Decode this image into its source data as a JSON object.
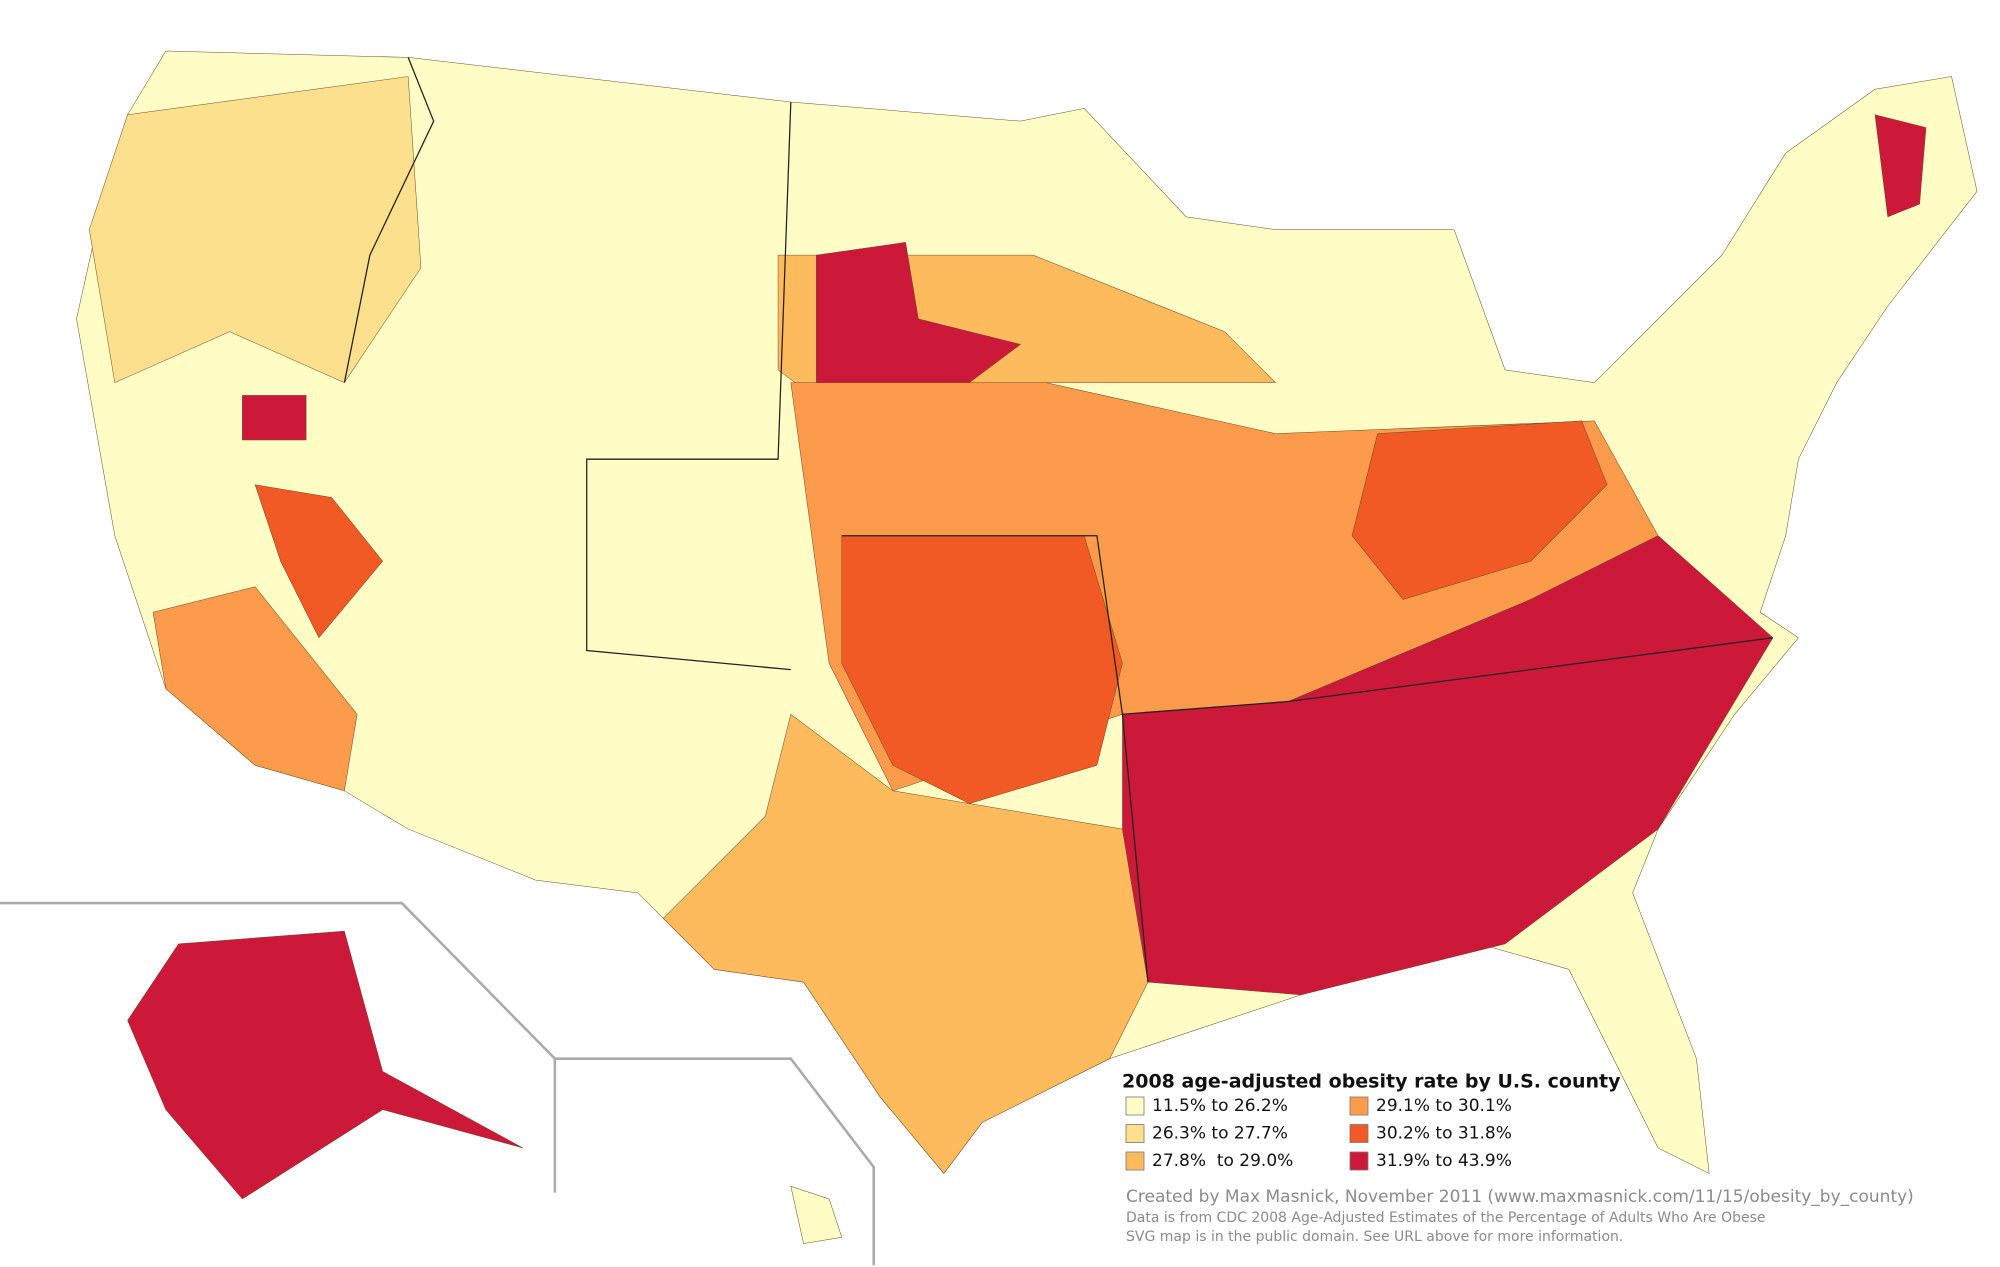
{
  "legend": {
    "title": "2008 age-adjusted obesity rate by U.S. county",
    "items": [
      {
        "label": "11.5% to 26.2%",
        "color": "#fffdc5"
      },
      {
        "label": "26.3% to 27.7%",
        "color": "#fde08e"
      },
      {
        "label": "27.8%  to 29.0%",
        "color": "#fdbb5e"
      },
      {
        "label": "29.1% to 30.1%",
        "color": "#fb9b4b"
      },
      {
        "label": "30.2% to 31.8%",
        "color": "#f15a24"
      },
      {
        "label": "31.9% to 43.9%",
        "color": "#cc1939"
      }
    ]
  },
  "credits": [
    "Created by Max Masnick, November 2011 (www.maxmasnick.com/11/15/obesity_by_county)",
    "Data is from CDC 2008 Age-Adjusted Estimates of the Percentage of Adults Who Are Obese",
    "SVG map is in the public domain. See URL above for more information."
  ]
}
